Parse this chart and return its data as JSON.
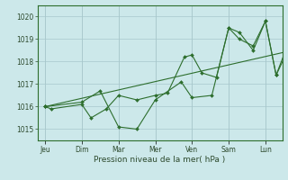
{
  "xlabel": "Pression niveau de la mer( hPa )",
  "bg_color": "#cce8ea",
  "grid_color": "#a8c8cc",
  "line_color": "#2d6e2d",
  "marker_color": "#2d6e2d",
  "ylim": [
    1014.5,
    1020.5
  ],
  "yticks": [
    1015,
    1016,
    1017,
    1018,
    1019,
    1020
  ],
  "day_labels": [
    "Jeu",
    "Dim",
    "Mar",
    "Mer",
    "Ven",
    "Sam",
    "Lun"
  ],
  "day_positions": [
    0,
    48,
    96,
    144,
    192,
    240,
    288
  ],
  "xlim": [
    -10,
    310
  ],
  "series": [
    [
      0,
      1016.0,
      8,
      1015.9,
      48,
      1016.1,
      60,
      1015.5,
      80,
      1015.9,
      96,
      1016.5,
      120,
      1016.3,
      144,
      1016.5,
      160,
      1016.6,
      182,
      1018.2,
      192,
      1018.3,
      205,
      1017.5,
      224,
      1017.3,
      240,
      1019.5,
      254,
      1019.0,
      272,
      1018.7,
      288,
      1019.8,
      302,
      1017.4,
      320,
      1019.0,
      336,
      1018.6
    ],
    [
      0,
      1016.0,
      48,
      1016.2,
      72,
      1016.7,
      96,
      1015.1,
      120,
      1015.0,
      144,
      1016.3,
      178,
      1017.1,
      192,
      1016.4,
      218,
      1016.5,
      240,
      1019.5,
      254,
      1019.3,
      272,
      1018.5,
      288,
      1019.8,
      302,
      1017.4,
      320,
      1018.7,
      336,
      1018.6
    ],
    [
      0,
      1016.0,
      336,
      1018.6
    ]
  ]
}
